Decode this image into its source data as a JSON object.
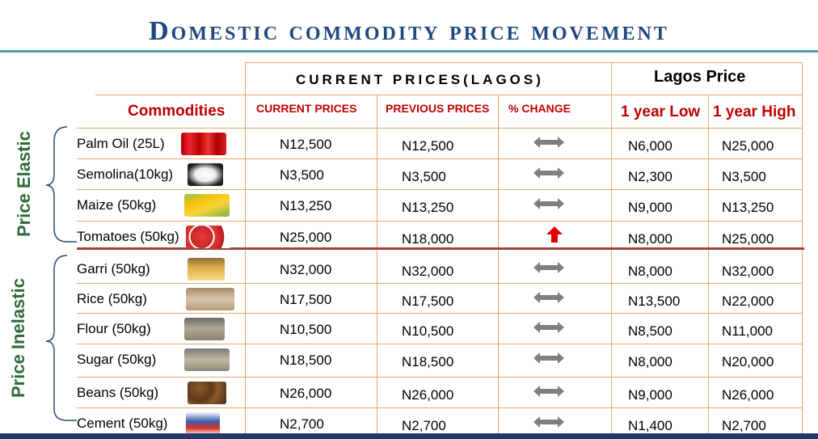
{
  "title": "Domestic commodity price movement",
  "header": {
    "current_prices_lagos": "CURRENT PRICES(LAGOS)",
    "lagos_price": "Lagos Price",
    "commodities": "Commodities",
    "current_prices": "CURRENT PRICES",
    "previous_prices": "PREVIOUS PRICES",
    "pct_change": "% CHANGE",
    "year_low": "1 year Low",
    "year_high": "1 year High"
  },
  "groups": {
    "elastic": "Price Elastic",
    "inelastic": "Price Inelastic"
  },
  "rows": [
    {
      "name": "Palm Oil (25L)",
      "current": "N12,500",
      "previous": "N12,500",
      "change": "flat",
      "low": "N6,000",
      "high": "N25,000",
      "icon": "palm-oil-icon"
    },
    {
      "name": "Semolina(10kg)",
      "current": "N3,500",
      "previous": "N3,500",
      "change": "flat",
      "low": "N2,300",
      "high": "N3,500",
      "icon": "semolina-icon"
    },
    {
      "name": "Maize (50kg)",
      "current": "N13,250",
      "previous": "N13,250",
      "change": "flat",
      "low": "N9,000",
      "high": "N13,250",
      "icon": "maize-icon"
    },
    {
      "name": "Tomatoes (50kg)",
      "current": "N25,000",
      "previous": "N18,000",
      "change": "up",
      "low": "N8,000",
      "high": "N25,000",
      "icon": "tomatoes-icon"
    },
    {
      "name": "Garri (50kg)",
      "current": "N32,000",
      "previous": "N32,000",
      "change": "flat",
      "low": "N8,000",
      "high": "N32,000",
      "icon": "garri-icon"
    },
    {
      "name": "Rice (50kg)",
      "current": "N17,500",
      "previous": "N17,500",
      "change": "flat",
      "low": "N13,500",
      "high": "N22,000",
      "icon": "rice-bag-icon"
    },
    {
      "name": "Flour (50kg)",
      "current": "N10,500",
      "previous": "N10,500",
      "change": "flat",
      "low": "N8,500",
      "high": "N11,000",
      "icon": "flour-bag-icon"
    },
    {
      "name": "Sugar (50kg)",
      "current": "N18,500",
      "previous": "N18,500",
      "change": "flat",
      "low": "N8,000",
      "high": "N20,000",
      "icon": "sugar-bag-icon"
    },
    {
      "name": "Beans (50kg)",
      "current": "N26,000",
      "previous": "N26,000",
      "change": "flat",
      "low": "N9,000",
      "high": "N26,000",
      "icon": "beans-icon"
    },
    {
      "name": "Cement (50kg)",
      "current": "N2,700",
      "previous": "N2,700",
      "change": "flat",
      "low": "N1,400",
      "high": "N2,700",
      "icon": "cement-bag-icon"
    }
  ],
  "colors": {
    "title": "#1f497d",
    "header_red": "#c00000",
    "group_green": "#2e6b3a",
    "grid": "#e8a86a",
    "arrow_flat": "#7f7f7f",
    "arrow_up": "#e00000"
  }
}
